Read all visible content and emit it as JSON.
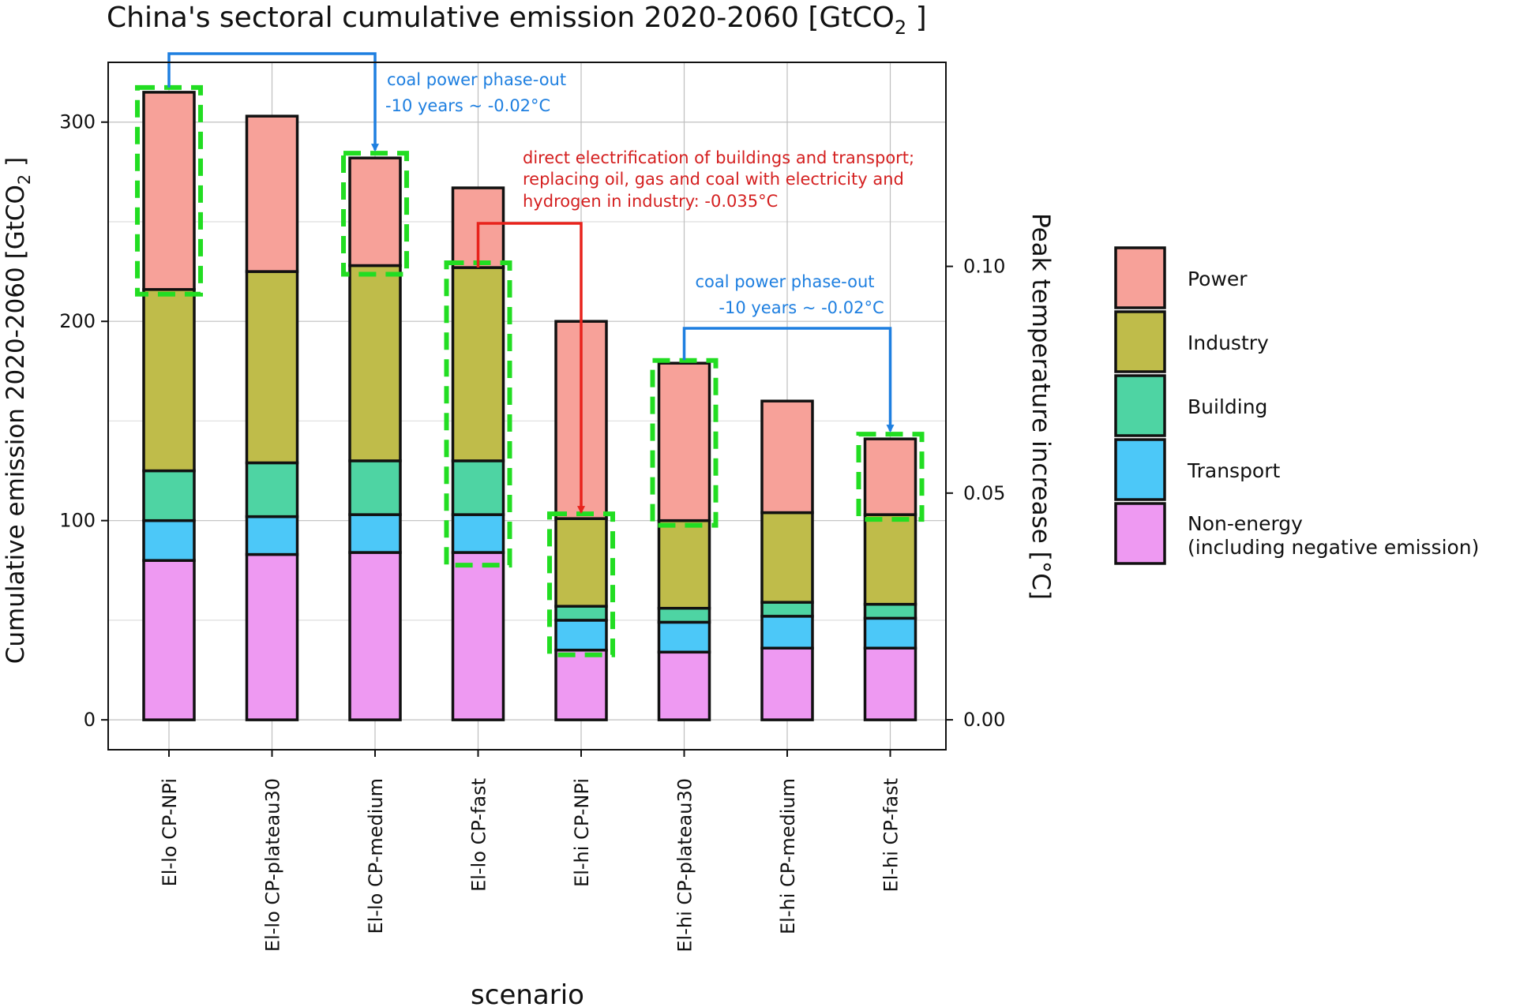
{
  "chart_data": {
    "type": "bar",
    "stacked": true,
    "title": "China's sectoral cumulative emission 2020-2060 [GtCO2 ]",
    "title_main": "China's sectoral cumulative emission 2020-2060 [GtCO",
    "title_sub": "2",
    "title_end": " ]",
    "xlabel": "scenario",
    "ylabel": "Cumulative emission 2020-2060 [GtCO2 ]",
    "ylabel_main": "Cumulative emission 2020-2060 [GtCO",
    "ylabel_sub": "2",
    "ylabel_end": " ]",
    "y2label": "Peak temperature increase [°C]",
    "ylim": [
      -15,
      330
    ],
    "yticks": [
      0,
      100,
      200,
      300
    ],
    "y2lim": [
      -0.0066,
      0.145
    ],
    "y2ticks": [
      0.0,
      0.05,
      0.1
    ],
    "y2ticklabels": [
      "0.00",
      "0.05",
      "0.10"
    ],
    "categories": [
      "El-lo CP-NPi",
      "El-lo CP-plateau30",
      "El-lo CP-medium",
      "El-lo CP-fast",
      "El-hi CP-NPi",
      "El-hi CP-plateau30",
      "El-hi CP-medium",
      "El-hi CP-fast"
    ],
    "series": [
      {
        "name": "Non-energy\n(including negative emission)",
        "color": "#EE99F2",
        "values": [
          80,
          83,
          84,
          84,
          35,
          34,
          36,
          36
        ]
      },
      {
        "name": "Transport",
        "color": "#4CC8F8",
        "values": [
          20,
          19,
          19,
          19,
          15,
          15,
          16,
          15
        ]
      },
      {
        "name": "Building",
        "color": "#4ED4A3",
        "values": [
          25,
          27,
          27,
          27,
          7,
          7,
          7,
          7
        ]
      },
      {
        "name": "Industry",
        "color": "#BFBC4A",
        "values": [
          91,
          96,
          98,
          97,
          44,
          44,
          45,
          45
        ]
      },
      {
        "name": "Power",
        "color": "#F7A199",
        "values": [
          99,
          78,
          54,
          40,
          99,
          79,
          56,
          38
        ]
      }
    ],
    "legend_order": [
      "Power",
      "Industry",
      "Building",
      "Transport",
      "Non-energy\n(including negative emission)"
    ],
    "legend_labels": {
      "Power": "Power",
      "Industry": "Industry",
      "Building": "Building",
      "Transport": "Transport",
      "Non-energy_1": "Non-energy",
      "Non-energy_2": "(including negative emission)"
    },
    "highlights": [
      {
        "category": "El-lo CP-NPi",
        "from": 216,
        "to": 315
      },
      {
        "category": "El-lo CP-medium",
        "from": 226,
        "to": 282
      },
      {
        "category": "El-lo CP-fast",
        "from": 80,
        "to": 227
      },
      {
        "category": "El-hi CP-NPi",
        "from": 35,
        "to": 101
      },
      {
        "category": "El-hi CP-plateau30",
        "from": 100,
        "to": 178
      },
      {
        "category": "El-hi CP-fast",
        "from": 103,
        "to": 141
      }
    ],
    "annotations": {
      "coal1_line1": "coal power phase-out",
      "coal1_line2": "-10 years ~ -0.02°C",
      "elec_line1": "direct electrification of buildings and transport;",
      "elec_line2": "replacing oil, gas and coal with electricity and",
      "elec_line3": "hydrogen in industry: -0.035°C",
      "coal2_line1": "coal power phase-out",
      "coal2_line2": "-10 years ~ -0.02°C"
    },
    "colors": {
      "highlight": "#22DD22",
      "arrow_blue": "#1E7FE0",
      "arrow_red": "#E8231C",
      "text_blue": "#1E7FE0",
      "text_red": "#D41F1F"
    }
  }
}
